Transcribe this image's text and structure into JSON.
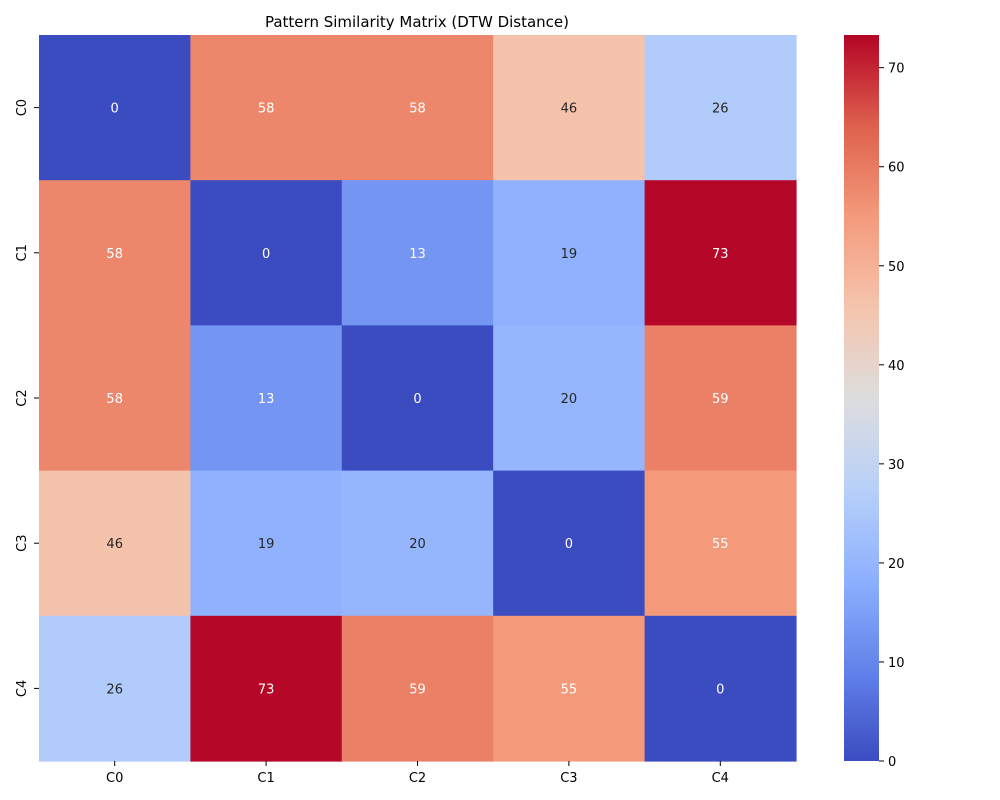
{
  "chart_data": {
    "type": "heatmap",
    "title": "Pattern Similarity Matrix (DTW Distance)",
    "x_categories": [
      "C0",
      "C1",
      "C2",
      "C3",
      "C4"
    ],
    "y_categories": [
      "C0",
      "C1",
      "C2",
      "C3",
      "C4"
    ],
    "values": [
      [
        0,
        58,
        58,
        46,
        26
      ],
      [
        58,
        0,
        13,
        19,
        73
      ],
      [
        58,
        13,
        0,
        20,
        59
      ],
      [
        46,
        19,
        20,
        0,
        55
      ],
      [
        26,
        73,
        59,
        55,
        0
      ]
    ],
    "colormap": "coolwarm",
    "vmin": 0,
    "vmax": 73.3,
    "colorbar_ticks": [
      0,
      10,
      20,
      30,
      40,
      50,
      60,
      70
    ],
    "xlabel": "",
    "ylabel": ""
  }
}
